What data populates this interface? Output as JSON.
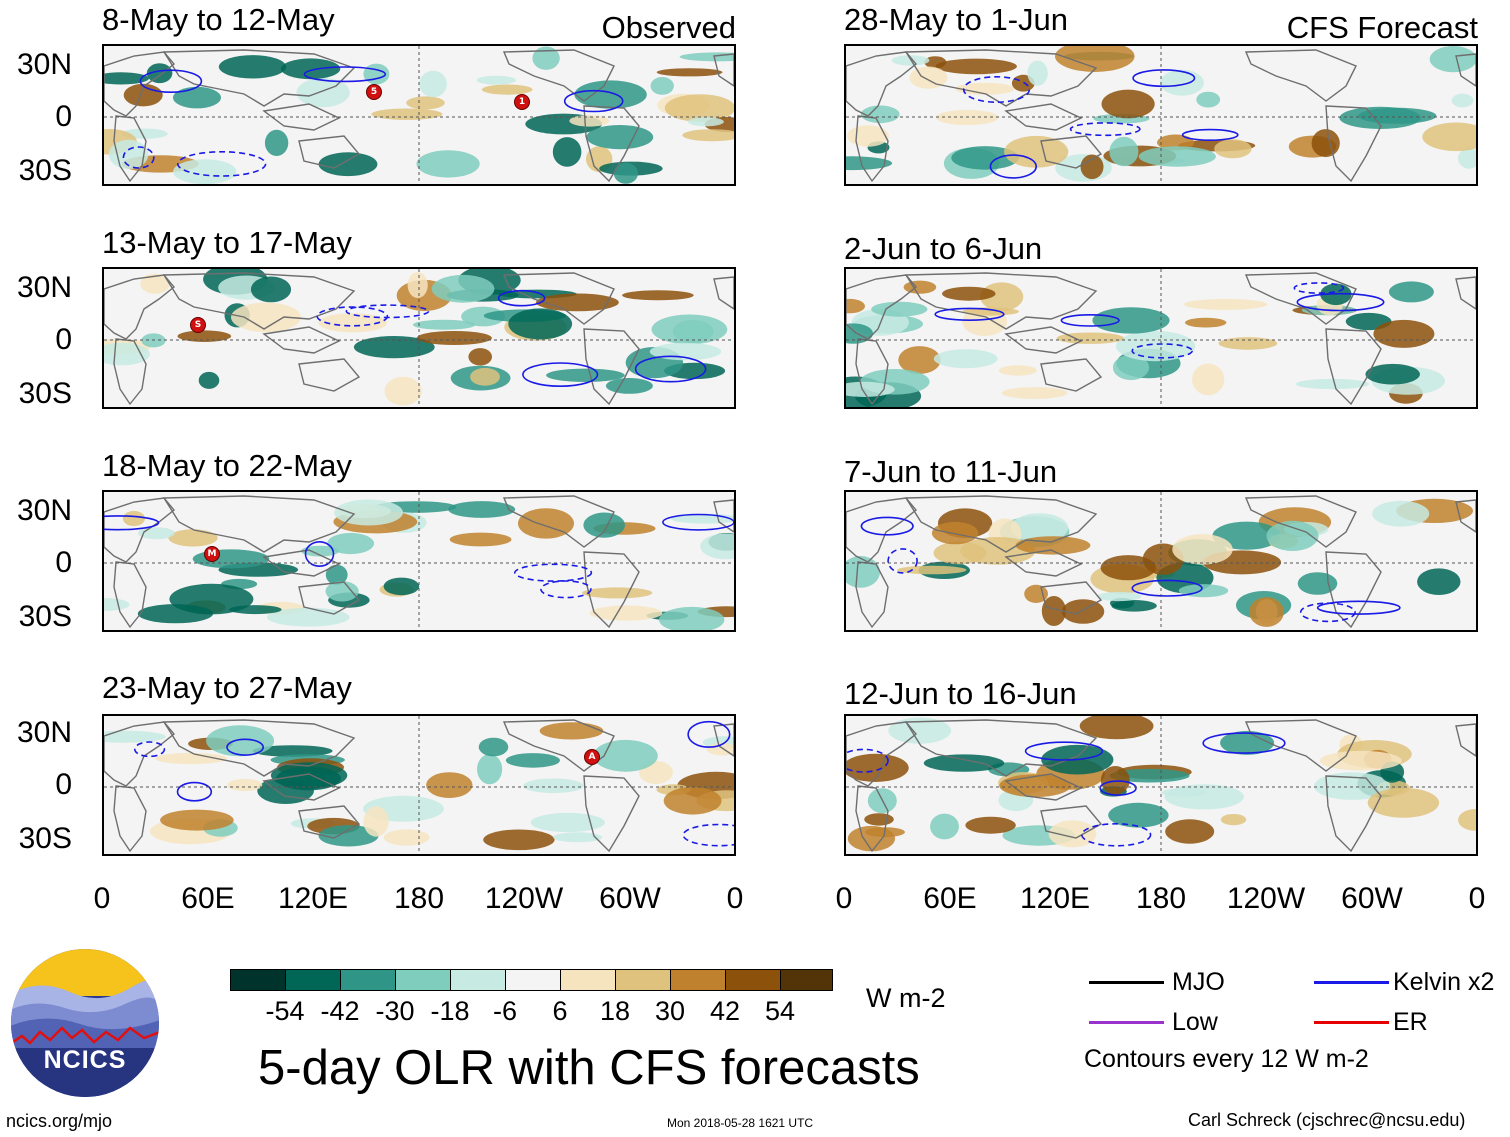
{
  "observed_label": "Observed",
  "forecast_label": "CFS Forecast",
  "observed_panels": [
    {
      "title": "8-May to 12-May",
      "storms": [
        "5",
        "1"
      ]
    },
    {
      "title": "13-May to 17-May",
      "storms": [
        "S"
      ]
    },
    {
      "title": "18-May to 22-May",
      "storms": [
        "M"
      ]
    },
    {
      "title": "23-May to 27-May",
      "storms": [
        "A"
      ]
    }
  ],
  "forecast_panels": [
    {
      "title": "28-May to 1-Jun"
    },
    {
      "title": "2-Jun to 6-Jun"
    },
    {
      "title": "7-Jun to 11-Jun"
    },
    {
      "title": "12-Jun to 16-Jun"
    }
  ],
  "lat_labels": [
    "30N",
    "0",
    "30S"
  ],
  "lon_labels": [
    "0",
    "60E",
    "120E",
    "180",
    "120W",
    "60W",
    "0"
  ],
  "colorbar": {
    "colors": [
      "#00332b",
      "#006656",
      "#2f9687",
      "#7fcdbd",
      "#c7eae3",
      "#f4f4f4",
      "#f6e4bf",
      "#dfc27d",
      "#bf812d",
      "#8c510a",
      "#533308"
    ],
    "labels": [
      "-54",
      "-42",
      "-30",
      "-18",
      "-6",
      "6",
      "18",
      "30",
      "42",
      "54"
    ],
    "units": "W m-2"
  },
  "legend": {
    "items": [
      {
        "label": "MJO",
        "color": "#000000"
      },
      {
        "label": "Kelvin x2",
        "color": "#1a1ae6"
      },
      {
        "label": "Low",
        "color": "#9933cc"
      },
      {
        "label": "ER",
        "color": "#e60000"
      }
    ],
    "note": "Contours every 12 W m-2"
  },
  "main_title": "5-day OLR with CFS forecasts",
  "logo_text": "NCICS",
  "footer": {
    "url": "ncics.org/mjo",
    "timestamp": "Mon 2018-05-28 1621 UTC",
    "credit": "Carl Schreck (cjschrec@ncsu.edu)"
  }
}
